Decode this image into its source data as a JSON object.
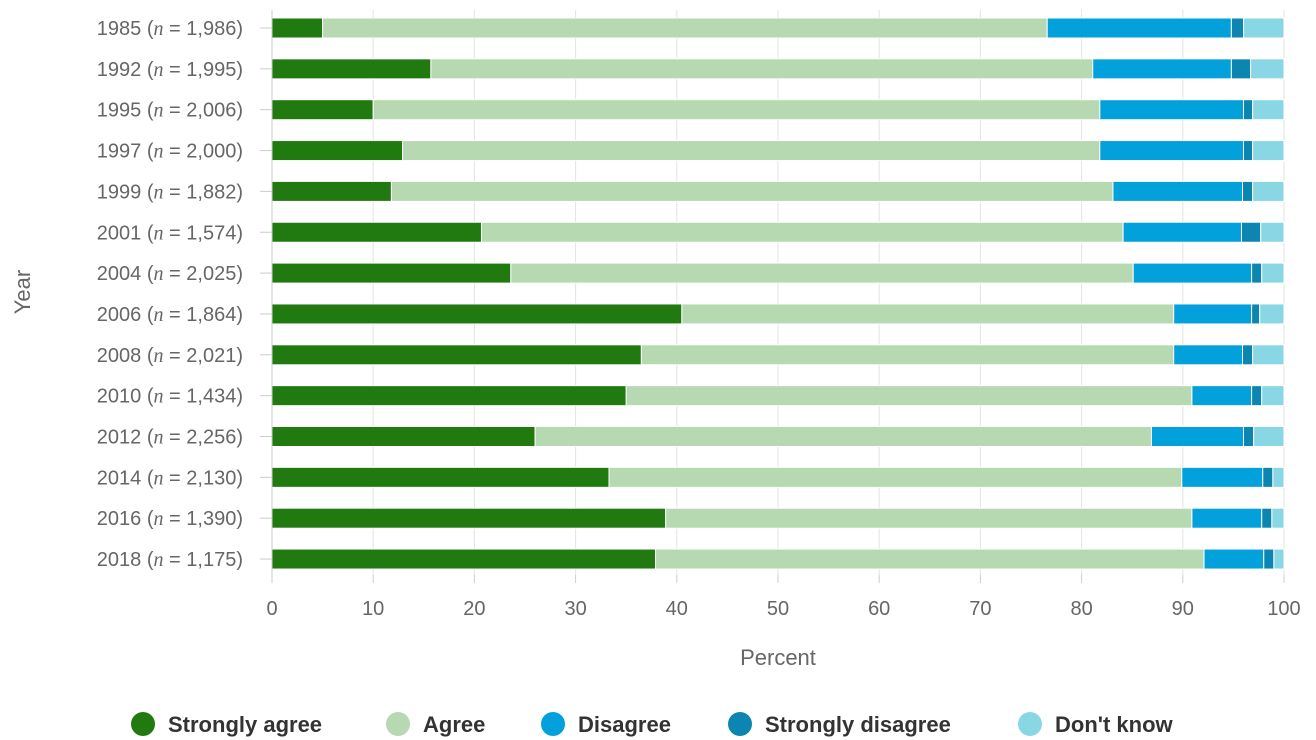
{
  "chart_data": {
    "type": "bar",
    "orientation": "horizontal",
    "stacked": true,
    "title": "",
    "xlabel": "Percent",
    "ylabel": "Year",
    "xlim": [
      0,
      100
    ],
    "xticks": [
      0,
      10,
      20,
      30,
      40,
      50,
      60,
      70,
      80,
      90,
      100
    ],
    "grid": true,
    "legend_position": "bottom",
    "categories": [
      {
        "year": "1985",
        "n": "1,986"
      },
      {
        "year": "1992",
        "n": "1,995"
      },
      {
        "year": "1995",
        "n": "2,006"
      },
      {
        "year": "1997",
        "n": "2,000"
      },
      {
        "year": "1999",
        "n": "1,882"
      },
      {
        "year": "2001",
        "n": "1,574"
      },
      {
        "year": "2004",
        "n": "2,025"
      },
      {
        "year": "2006",
        "n": "1,864"
      },
      {
        "year": "2008",
        "n": "2,021"
      },
      {
        "year": "2010",
        "n": "1,434"
      },
      {
        "year": "2012",
        "n": "2,256"
      },
      {
        "year": "2014",
        "n": "2,130"
      },
      {
        "year": "2016",
        "n": "1,390"
      },
      {
        "year": "2018",
        "n": "1,175"
      }
    ],
    "category_label_format": {
      "open": " (",
      "n_symbol": "n",
      "equals": " = ",
      "close": ")"
    },
    "series": [
      {
        "name": "Strongly agree",
        "color": "#217a10",
        "values": [
          5,
          15.7,
          10,
          12.9,
          11.8,
          20.7,
          23.6,
          40.5,
          36.5,
          35,
          26,
          33.3,
          38.9,
          37.9
        ]
      },
      {
        "name": "Agree",
        "color": "#b7d9b1",
        "values": [
          71.6,
          65.4,
          71.8,
          68.9,
          71.3,
          63.4,
          61.5,
          48.6,
          52.6,
          55.9,
          60.9,
          56.6,
          52,
          54.2
        ]
      },
      {
        "name": "Disagree",
        "color": "#02a1dc",
        "values": [
          18.2,
          13.7,
          14.2,
          14.2,
          12.8,
          11.7,
          11.7,
          7.7,
          6.8,
          5.9,
          9.1,
          8,
          6.9,
          5.9
        ]
      },
      {
        "name": "Strongly disagree",
        "color": "#0c85b0",
        "values": [
          1.2,
          1.9,
          0.9,
          0.9,
          1,
          1.9,
          1,
          0.8,
          1,
          1,
          1,
          1,
          1,
          1
        ]
      },
      {
        "name": "Don't know",
        "color": "#89d7e5",
        "values": [
          4,
          3.3,
          3.1,
          3.1,
          3.1,
          2.3,
          2.2,
          2.4,
          3.1,
          2.2,
          3,
          1.1,
          1.2,
          1
        ]
      }
    ]
  }
}
